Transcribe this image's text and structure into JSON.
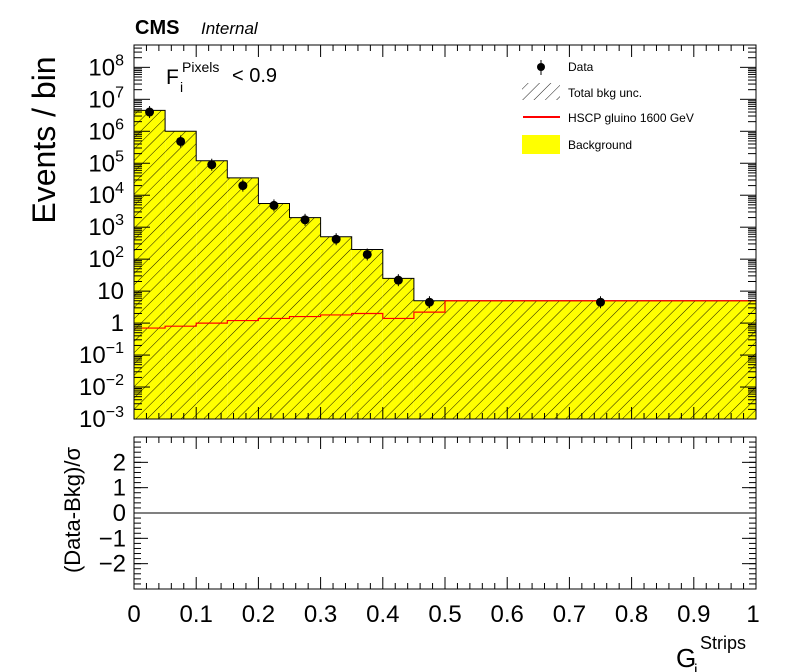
{
  "header": {
    "experiment": "CMS",
    "status": "Internal"
  },
  "annotation": {
    "symbol": "F",
    "sub": "i",
    "sup": "Pixels",
    "cut": "< 0.9"
  },
  "colors": {
    "background_fill": "#ffff00",
    "signal_line": "#ff0000",
    "data_marker": "#000000"
  },
  "legend": {
    "position": "top-right",
    "entries": [
      {
        "label": "Data",
        "kind": "data-marker"
      },
      {
        "label": "Total bkg unc.",
        "kind": "hatch"
      },
      {
        "label": "HSCP gluino 1600 GeV",
        "kind": "line"
      },
      {
        "label": "Background",
        "kind": "fill"
      }
    ]
  },
  "chart_data": [
    {
      "type": "area",
      "panel": "main",
      "ylabel": "Events / bin",
      "xlim": [
        0,
        1
      ],
      "ylim": [
        0.001,
        500000000
      ],
      "yscale": "log",
      "grid": false,
      "y_ticks": [
        {
          "base": "10",
          "exp": "8",
          "value": 100000000
        },
        {
          "base": "10",
          "exp": "7",
          "value": 10000000
        },
        {
          "base": "10",
          "exp": "6",
          "value": 1000000
        },
        {
          "base": "10",
          "exp": "5",
          "value": 100000
        },
        {
          "base": "10",
          "exp": "4",
          "value": 10000
        },
        {
          "base": "10",
          "exp": "3",
          "value": 1000
        },
        {
          "base": "10",
          "exp": "2",
          "value": 100
        },
        {
          "base": "10",
          "exp": "",
          "value": 10
        },
        {
          "base": "1",
          "exp": "",
          "value": 1
        },
        {
          "base": "10",
          "exp": "−1",
          "value": 0.1
        },
        {
          "base": "10",
          "exp": "−2",
          "value": 0.01
        },
        {
          "base": "10",
          "exp": "−3",
          "value": 0.001
        }
      ],
      "bin_edges": [
        0,
        0.05,
        0.1,
        0.15,
        0.2,
        0.25,
        0.3,
        0.35,
        0.4,
        0.45,
        0.5,
        1.0
      ],
      "series": [
        {
          "name": "Background",
          "values": [
            4500000,
            1000000,
            120000,
            35000,
            5500,
            2000,
            500,
            200,
            25,
            5,
            5
          ]
        },
        {
          "name": "HSCP gluino 1600 GeV",
          "values": [
            0.7,
            0.8,
            1.0,
            1.2,
            1.4,
            1.6,
            1.8,
            2.0,
            1.4,
            2.2,
            5
          ]
        },
        {
          "name": "Data",
          "x": [
            0.025,
            0.075,
            0.125,
            0.175,
            0.225,
            0.275,
            0.325,
            0.375,
            0.425,
            0.475,
            0.75
          ],
          "values": [
            4000000,
            480000,
            90000,
            20000,
            4800,
            1700,
            420,
            140,
            22,
            4.5,
            4.5
          ]
        }
      ]
    },
    {
      "type": "line",
      "panel": "ratio",
      "ylabel": "(Data-Bkg)/σ",
      "xlabel": {
        "symbol": "G",
        "sub": "i",
        "sup": "Strips"
      },
      "xlim": [
        0,
        1
      ],
      "ylim": [
        -3,
        3
      ],
      "x_ticks": [
        "0",
        "0.1",
        "0.2",
        "0.3",
        "0.4",
        "0.5",
        "0.6",
        "0.7",
        "0.8",
        "0.9",
        "1"
      ],
      "y_ticks": [
        "2",
        "1",
        "0",
        "−1",
        "−2"
      ],
      "series": [
        {
          "name": "",
          "x": [
            0,
            1
          ],
          "values": [
            0,
            0
          ]
        }
      ]
    }
  ]
}
